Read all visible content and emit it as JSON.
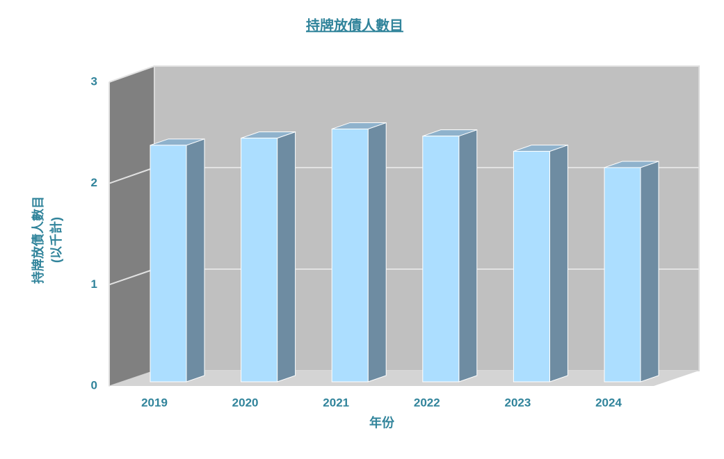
{
  "chart_data": {
    "type": "bar3d",
    "title": "持牌放債人數目",
    "ylabel": [
      "持牌放債人數目",
      "(以千計)"
    ],
    "xlabel": "年份",
    "categories": [
      "2019",
      "2020",
      "2021",
      "2022",
      "2023",
      "2024"
    ],
    "values": [
      2.33,
      2.4,
      2.49,
      2.42,
      2.27,
      2.11
    ],
    "color": "#acdeff",
    "ylim": [
      0,
      3
    ],
    "yticks": [
      0,
      1,
      2,
      3
    ],
    "grid": true
  }
}
